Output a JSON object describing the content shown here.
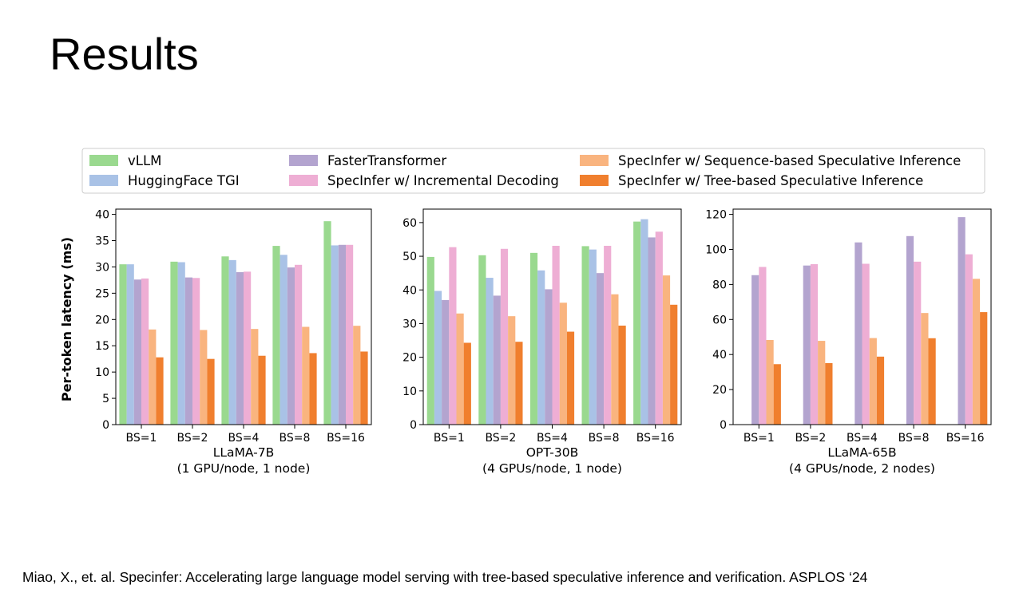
{
  "slide": {
    "title": "Results",
    "citation": "Miao, X., et. al. Specinfer: Accelerating large language model serving with tree-based speculative inference and verification. ASPLOS ‘24"
  },
  "colors": {
    "vLLM": "#9ad98f",
    "HuggingFace TGI": "#a9c2e6",
    "FasterTransformer": "#b3a4cf",
    "SpecInfer w/ Incremental Decoding": "#eeaed4",
    "SpecInfer w/ Sequence-based Speculative Inference": "#f9b47f",
    "SpecInfer w/ Tree-based Speculative Inference": "#f07f2e"
  },
  "chart_data": {
    "type": "bar",
    "ylabel": "Per-token latency (ms)",
    "legend_position": "top",
    "series_names": [
      "vLLM",
      "HuggingFace TGI",
      "FasterTransformer",
      "SpecInfer w/ Incremental Decoding",
      "SpecInfer w/ Sequence-based Speculative Inference",
      "SpecInfer w/ Tree-based Speculative Inference"
    ],
    "panels": [
      {
        "title_line1": "LLaMA-7B",
        "title_line2": "(1 GPU/node, 1 node)",
        "categories": [
          "BS=1",
          "BS=2",
          "BS=4",
          "BS=8",
          "BS=16"
        ],
        "ylim": [
          0,
          41
        ],
        "yticks": [
          0,
          5,
          10,
          15,
          20,
          25,
          30,
          35,
          40
        ],
        "series": [
          {
            "name": "vLLM",
            "values": [
              30.5,
              31.0,
              32.0,
              34.0,
              38.7
            ]
          },
          {
            "name": "HuggingFace TGI",
            "values": [
              30.5,
              30.9,
              31.3,
              32.3,
              34.1
            ]
          },
          {
            "name": "FasterTransformer",
            "values": [
              27.6,
              28.0,
              29.0,
              29.9,
              34.2
            ]
          },
          {
            "name": "SpecInfer w/ Incremental Decoding",
            "values": [
              27.8,
              27.9,
              29.1,
              30.4,
              34.2
            ]
          },
          {
            "name": "SpecInfer w/ Sequence-based Speculative Inference",
            "values": [
              18.1,
              18.0,
              18.2,
              18.6,
              18.8
            ]
          },
          {
            "name": "SpecInfer w/ Tree-based Speculative Inference",
            "values": [
              12.8,
              12.5,
              13.1,
              13.6,
              13.9
            ]
          }
        ]
      },
      {
        "title_line1": "OPT-30B",
        "title_line2": "(4 GPUs/node, 1 node)",
        "categories": [
          "BS=1",
          "BS=2",
          "BS=4",
          "BS=8",
          "BS=16"
        ],
        "ylim": [
          0,
          64
        ],
        "yticks": [
          0,
          10,
          20,
          30,
          40,
          50,
          60
        ],
        "series": [
          {
            "name": "vLLM",
            "values": [
              49.8,
              50.3,
              51.0,
              53.0,
              60.3
            ]
          },
          {
            "name": "HuggingFace TGI",
            "values": [
              39.7,
              43.6,
              45.8,
              52.0,
              61.0
            ]
          },
          {
            "name": "FasterTransformer",
            "values": [
              37.0,
              38.3,
              40.2,
              45.0,
              55.6
            ]
          },
          {
            "name": "SpecInfer w/ Incremental Decoding",
            "values": [
              52.7,
              52.2,
              53.1,
              53.1,
              57.3
            ]
          },
          {
            "name": "SpecInfer w/ Sequence-based Speculative Inference",
            "values": [
              33.0,
              32.2,
              36.2,
              38.7,
              44.3
            ]
          },
          {
            "name": "SpecInfer w/ Tree-based Speculative Inference",
            "values": [
              24.3,
              24.6,
              27.6,
              29.4,
              35.6
            ]
          }
        ]
      },
      {
        "title_line1": "LLaMA-65B",
        "title_line2": "(4 GPUs/node, 2 nodes)",
        "categories": [
          "BS=1",
          "BS=2",
          "BS=4",
          "BS=8",
          "BS=16"
        ],
        "ylim": [
          0,
          123
        ],
        "yticks": [
          0,
          20,
          40,
          60,
          80,
          100,
          120
        ],
        "series": [
          {
            "name": "vLLM",
            "values": [
              null,
              null,
              null,
              null,
              null
            ]
          },
          {
            "name": "HuggingFace TGI",
            "values": [
              null,
              null,
              null,
              null,
              null
            ]
          },
          {
            "name": "FasterTransformer",
            "values": [
              85.3,
              90.8,
              104.0,
              107.6,
              118.4
            ]
          },
          {
            "name": "SpecInfer w/ Incremental Decoding",
            "values": [
              90.0,
              91.6,
              91.8,
              93.0,
              97.2
            ]
          },
          {
            "name": "SpecInfer w/ Sequence-based Speculative Inference",
            "values": [
              48.3,
              47.8,
              49.4,
              63.7,
              83.2
            ]
          },
          {
            "name": "SpecInfer w/ Tree-based Speculative Inference",
            "values": [
              34.5,
              35.1,
              38.8,
              49.3,
              64.2
            ]
          }
        ]
      }
    ]
  }
}
